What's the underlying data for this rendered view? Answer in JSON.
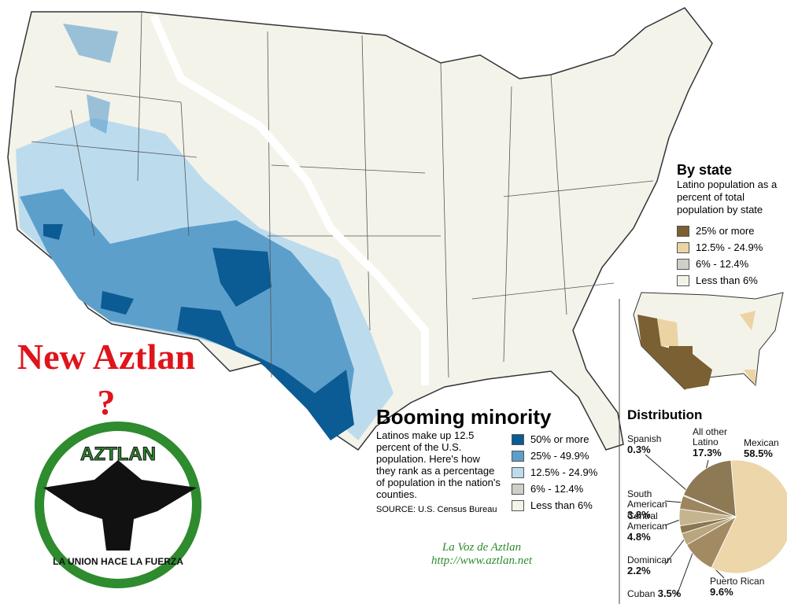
{
  "headline": "New Aztlan ?",
  "logo": {
    "top": "AZTLAN",
    "bottom": "LA UNION HACE LA FUERZA"
  },
  "credit": {
    "name": "La Voz de Aztlan",
    "url": "http://www.aztlan.net"
  },
  "booming": {
    "title": "Booming minority",
    "description": "Latinos make up 12.5 percent of the U.S. population. Here's how they rank as a percentage of population in the nation's counties.",
    "source": "SOURCE: U.S. Census Bureau",
    "legend": [
      {
        "label": "50% or more",
        "color": "#0b5b94"
      },
      {
        "label": "25% - 49.9%",
        "color": "#5d9fcb"
      },
      {
        "label": "12.5% - 24.9%",
        "color": "#bcdcee"
      },
      {
        "label": "6% - 12.4%",
        "color": "#cfcfc9"
      },
      {
        "label": "Less than 6%",
        "color": "#f4f3ea"
      }
    ]
  },
  "by_state": {
    "title": "By state",
    "description": "Latino population as a percent of total population by state",
    "legend": [
      {
        "label": "25% or more",
        "color": "#7a6033"
      },
      {
        "label": "12.5% - 24.9%",
        "color": "#ebd3a4"
      },
      {
        "label": "6% - 12.4%",
        "color": "#cfcfc9"
      },
      {
        "label": "Less than 6%",
        "color": "#f4f3ea"
      }
    ]
  },
  "chart_data": {
    "type": "pie",
    "title": "Distribution",
    "categories": [
      "Mexican",
      "Puerto Rican",
      "Cuban",
      "Dominican",
      "Central American",
      "South American",
      "Spanish",
      "All other Latino"
    ],
    "values": [
      58.5,
      9.6,
      3.5,
      2.2,
      4.8,
      3.8,
      0.3,
      17.3
    ],
    "value_labels": [
      "58.5%",
      "9.6%",
      "3.5%",
      "2.2%",
      "4.8%",
      "3.8%",
      "0.3%",
      "17.3%"
    ],
    "colors": [
      "#ecd6aa",
      "#a28a62",
      "#b9a57e",
      "#8c7650",
      "#c6b48f",
      "#9c8660",
      "#d8c8a6",
      "#8d7a55"
    ]
  }
}
